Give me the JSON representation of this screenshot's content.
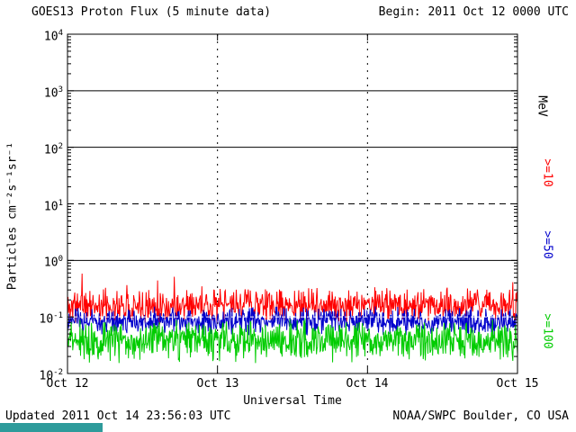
{
  "header": {
    "begin": "Begin: 2011 Oct 12 0000 UTC"
  },
  "footer": {
    "updated": "Updated 2011 Oct 14 23:56:03 UTC",
    "source": "NOAA/SWPC Boulder, CO USA",
    "accent_color": "#2e9b9b"
  },
  "chart_data": {
    "type": "line",
    "title": "GOES13 Proton Flux (5 minute data)",
    "xlabel": "Universal Time",
    "ylabel": "Particles cm⁻²s⁻¹sr⁻¹",
    "right_axis_label": "MeV",
    "x_ticks": [
      "Oct 12",
      "Oct 13",
      "Oct 14",
      "Oct 15"
    ],
    "y_scale": "log",
    "ylim": [
      0.01,
      10000
    ],
    "y_tick_exponents": [
      4,
      3,
      2,
      1,
      0,
      -1,
      -2
    ],
    "hlines": [
      {
        "y": 1000,
        "style": "solid"
      },
      {
        "y": 100,
        "style": "solid"
      },
      {
        "y": 10,
        "style": "dashed"
      },
      {
        "y": 1,
        "style": "solid"
      }
    ],
    "overlay_hline": {
      "y": 0.1,
      "style": "dashed",
      "color": "#ffffff"
    },
    "grid": "partial",
    "legend_position": "right",
    "days": 3,
    "points_per_day": 288,
    "series": [
      {
        "name": ">=10",
        "unit": "MeV",
        "color": "#ff0000",
        "baseline": 0.16,
        "log_noise": 0.2,
        "spike_prob": 0.012,
        "spike_max": 0.65,
        "seed": 11
      },
      {
        "name": ">=50",
        "unit": "MeV",
        "color": "#0000cc",
        "baseline": 0.085,
        "log_noise": 0.16,
        "seed": 23
      },
      {
        "name": ">=100",
        "unit": "MeV",
        "color": "#00cc00",
        "baseline": 0.038,
        "log_noise": 0.24,
        "floor": 0.011,
        "seed": 37
      }
    ]
  }
}
